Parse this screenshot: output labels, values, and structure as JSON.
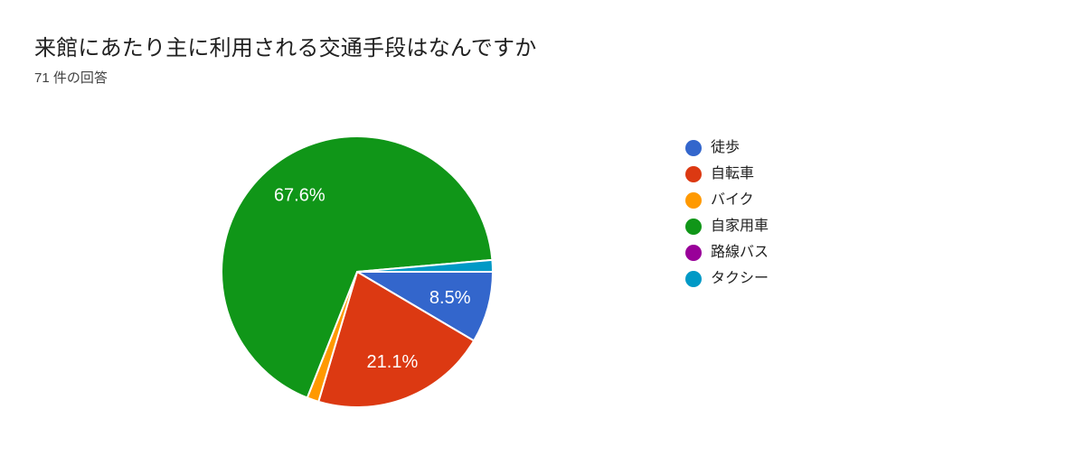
{
  "chart_data": {
    "type": "pie",
    "title": "来館にあたり主に利用される交通手段はなんですか",
    "subtitle": "71 件の回答",
    "legend_position": "right",
    "start_angle_deg": 90,
    "direction": "clockwise",
    "background_color": "#ffffff",
    "slice_border_color": "#ffffff",
    "slice_label_color": "#ffffff",
    "title_color": "#212121",
    "subtitle_color": "#424242",
    "slices": [
      {
        "id": "walk",
        "label": "徒歩",
        "pct": 8.5,
        "pct_label": "8.5%",
        "color": "#3366CC"
      },
      {
        "id": "bicycle",
        "label": "自転車",
        "pct": 21.1,
        "pct_label": "21.1%",
        "color": "#DC3912"
      },
      {
        "id": "motorbike",
        "label": "バイク",
        "pct": 1.4,
        "pct_label": "",
        "color": "#FF9900"
      },
      {
        "id": "private-car",
        "label": "自家用車",
        "pct": 67.6,
        "pct_label": "67.6%",
        "color": "#109618"
      },
      {
        "id": "route-bus",
        "label": "路線バス",
        "pct": 0,
        "pct_label": "",
        "color": "#990099"
      },
      {
        "id": "taxi",
        "label": "タクシー",
        "pct": 1.4,
        "pct_label": "",
        "color": "#0099C6"
      }
    ]
  }
}
